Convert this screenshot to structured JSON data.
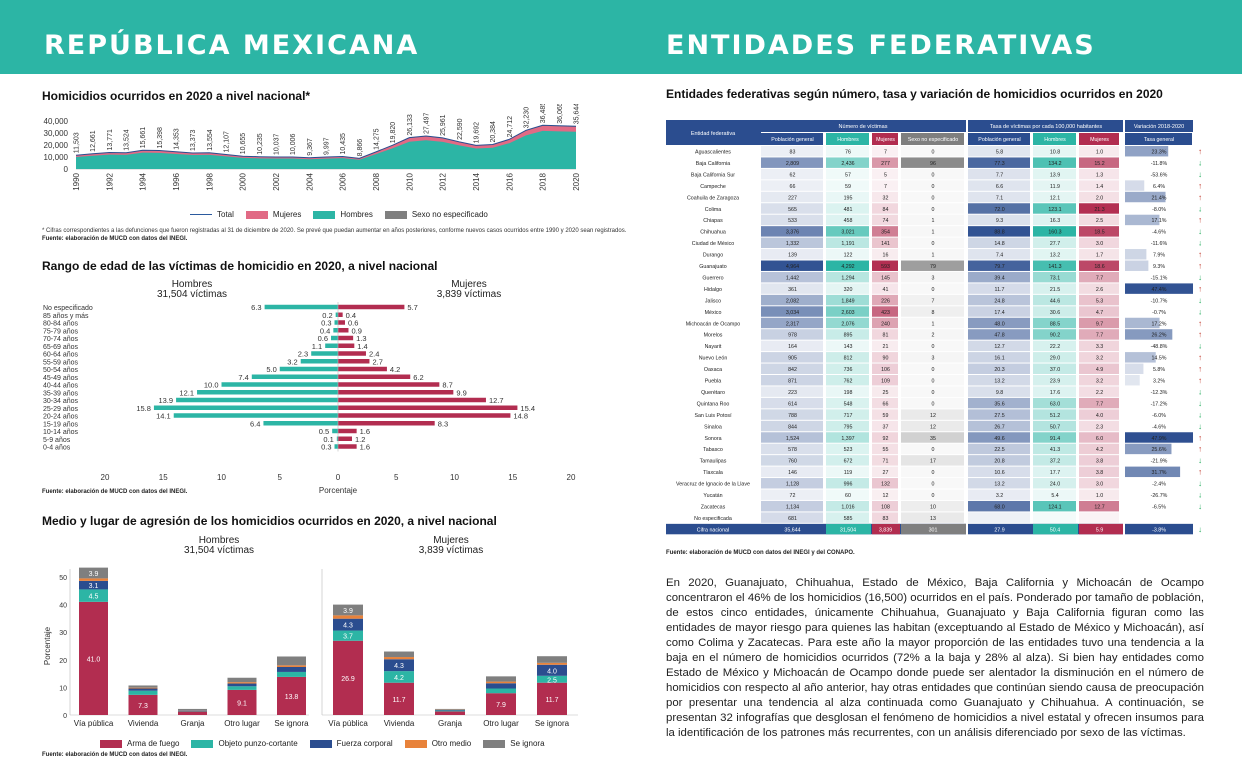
{
  "header": {
    "left": "REPÚBLICA MEXICANA",
    "right": "ENTIDADES FEDERATIVAS"
  },
  "colors": {
    "teal": "#2cb5a5",
    "crimson": "#b22d50",
    "pink": "#e16a85",
    "navy": "#2b4d8f",
    "orange": "#e8823a",
    "gray": "#7f7f7f",
    "headerblue": "#2b4d8f"
  },
  "sections": {
    "s1": "Homicidios ocurridos en 2020 a nivel nacional*",
    "s1_note": "* Cifras correspondientes a las defunciones que fueron registradas al 31 de diciembre de 2020. Se prevé que puedan aumentar en años posteriores, conforme nuevos casos ocurridos entre 1990 y 2020 sean registrados.",
    "s1_src": "Fuente: elaboración de MUCD con datos del INEGI.",
    "s2": "Rango de edad de las víctimas de homicidio en 2020, a nivel nacional",
    "s2_src": "Fuente: elaboración de MUCD con datos del INEGI.",
    "s3": "Medio y lugar de agresión de los homicidios ocurridos en 2020, a nivel nacional",
    "s3_src": "Fuente: elaboración de MUCD con datos del INEGI.",
    "s4": "Entidades federativas según número, tasa y variación de homicidios ocurridos en 2020",
    "s4_src": "Fuente: elaboración de MUCD con datos del INEGI y del CONAPO."
  },
  "paragraph": "En 2020, Guanajuato, Chihuahua, Estado de México, Baja California y Michoacán de Ocampo concentraron el 46% de los homicidios (16,500) ocurridos en el país. Ponderado por tamaño de población, de estos cinco entidades, únicamente Chihuahua, Guanajuato y Baja California figuran como las entidades de mayor riesgo para quienes las habitan (exceptuando al Estado de México y Michoacán), así como Colima y Zacatecas. Para este año la mayor proporción de las entidades tuvo una tendencia a la baja en el número de homicidios ocurridos (72% a la baja y 28% al alza). Si bien hay entidades como Estado de México y Michoacán de Ocampo donde pue­de ser alentador la disminución en el número de homicidios con respecto al año anterior, hay otras entidades que continúan siendo causa de preocupación por presentar una tendencia al alza continuada como Guanajuato y Chihuahua. A continuación, se presentan 32 infografías que desglosan el fenómeno de homicidios a nivel estatal y ofrecen insumos para la identificación de los patrones más recurrentes, con un análisis diferenciado por sexo de las víctimas.",
  "chart_data": [
    {
      "type": "area",
      "x": [
        1990,
        1991,
        1992,
        1993,
        1994,
        1995,
        1996,
        1997,
        1998,
        1999,
        2000,
        2001,
        2002,
        2003,
        2004,
        2005,
        2006,
        2007,
        2008,
        2009,
        2010,
        2011,
        2012,
        2013,
        2014,
        2015,
        2016,
        2017,
        2018,
        2019,
        2020
      ],
      "total": [
        11503,
        12661,
        13771,
        13524,
        15661,
        15398,
        14353,
        13373,
        13554,
        12107,
        10655,
        10235,
        10037,
        10006,
        9367,
        9997,
        10435,
        8866,
        14275,
        19820,
        26133,
        27497,
        25961,
        22590,
        19692,
        20384,
        24712,
        32230,
        36485,
        36065,
        35644
      ],
      "total_labels": [
        "11,503",
        "12,661",
        "13,771",
        "13,524",
        "15,661",
        "15,398",
        "14,353",
        "13,373",
        "13,554",
        "12,107",
        "10,655",
        "10,235",
        "10,037",
        "10,006",
        "9,367",
        "9,997",
        "10,435",
        "8,866",
        "14,275",
        "19,820",
        "26,133",
        "27,497",
        "25,961",
        "22,590",
        "19,692",
        "20,384",
        "24,712",
        "32,230",
        "36,485",
        "36,065",
        "35,644"
      ],
      "yticks": [
        "40,000",
        "30,000",
        "20,000",
        "10,000",
        "0"
      ],
      "ylim": [
        0,
        40000
      ],
      "xticks": [
        "1990",
        "1992",
        "1994",
        "1996",
        "1998",
        "2000",
        "2002",
        "2004",
        "2006",
        "2008",
        "2010",
        "2012",
        "2014",
        "2016",
        "2018",
        "2020"
      ],
      "legend": [
        "Total",
        "Mujeres",
        "Hombres",
        "Sexo no especificado"
      ]
    },
    {
      "type": "bar",
      "orientation": "horizontal",
      "left_title": "Hombres",
      "left_sub": "31,504 víctimas",
      "right_title": "Mujeres",
      "right_sub": "3,839 víctimas",
      "categories": [
        "No especificado",
        "85 años y más",
        "80-84 años",
        "75-79 años",
        "70-74 años",
        "65-69 años",
        "60-64 años",
        "55-59 años",
        "50-54 años",
        "45-49 años",
        "40-44 años",
        "35-39 años",
        "30-34 años",
        "25-29 años",
        "20-24 años",
        "15-19 años",
        "10-14 años",
        "5-9 años",
        "0-4 años"
      ],
      "hombres": [
        6.3,
        0.2,
        0.3,
        0.4,
        0.6,
        1.1,
        2.3,
        3.2,
        5.0,
        7.4,
        10.0,
        12.1,
        13.9,
        15.8,
        14.1,
        6.4,
        0.5,
        0.1,
        0.3
      ],
      "mujeres": [
        5.7,
        0.4,
        0.6,
        0.9,
        1.3,
        1.4,
        2.4,
        2.7,
        4.2,
        6.2,
        8.7,
        9.9,
        12.7,
        15.4,
        14.8,
        8.3,
        1.6,
        1.2,
        1.6
      ],
      "hombres_labels": [
        "6.3",
        "0.2",
        "0.3",
        "0.4",
        "0.6",
        "1.1",
        "2.3",
        "3.2",
        "5.0",
        "7.4",
        "10.0",
        "12.1",
        "13.9",
        "15.8",
        "14.1",
        "6.4",
        "0.5",
        "0.1",
        "0.3"
      ],
      "mujeres_labels": [
        "5.7",
        "0.4",
        "0.6",
        "0.9",
        "1.3",
        "1.4",
        "2.4",
        "2.7",
        "4.2",
        "6.2",
        "8.7",
        "9.9",
        "12.7",
        "15.4",
        "14.8",
        "8.3",
        "1.6",
        "1.2",
        "1.6"
      ],
      "xticks": [
        "20",
        "15",
        "10",
        "5",
        "0",
        "5",
        "10",
        "15",
        "20"
      ],
      "xlabel": "Porcentaje",
      "xlim": [
        0,
        20
      ]
    },
    {
      "type": "bar",
      "stacked": true,
      "left_title": "Hombres",
      "left_sub": "31,504 víctimas",
      "right_title": "Mujeres",
      "right_sub": "3,839 víctimas",
      "categories": [
        "Vía pública",
        "Vivienda",
        "Granja",
        "Otro lugar",
        "Se ignora"
      ],
      "series_names": [
        "Arma de fuego",
        "Objeto punzo-cortante",
        "Fuerza corporal",
        "Otro medio",
        "Se ignora"
      ],
      "hombres": [
        [
          41.0,
          4.5,
          3.1,
          0.9,
          3.9
        ],
        [
          7.3,
          1.5,
          0.8,
          0.3,
          0.8
        ],
        [
          1.3,
          0.2,
          0.2,
          0.1,
          0.4
        ],
        [
          9.1,
          1.3,
          1.0,
          0.5,
          1.6
        ],
        [
          13.8,
          1.8,
          1.8,
          0.6,
          3.2
        ]
      ],
      "mujeres": [
        [
          26.9,
          3.7,
          4.3,
          1.2,
          3.9
        ],
        [
          11.7,
          4.2,
          4.3,
          0.8,
          2.0
        ],
        [
          1.3,
          0.3,
          0.2,
          0.1,
          0.3
        ],
        [
          7.9,
          1.7,
          1.9,
          0.6,
          1.9
        ],
        [
          11.7,
          2.5,
          4.0,
          0.7,
          2.4
        ]
      ],
      "hombres_labels": [
        [
          "41.0",
          "4.5",
          "3.1",
          "",
          "3.9"
        ],
        [
          "7.3",
          "",
          "",
          "",
          ""
        ],
        [
          "",
          "",
          "",
          "",
          ""
        ],
        [
          "9.1",
          "",
          "",
          "",
          ""
        ],
        [
          "13.8",
          "",
          "",
          "",
          ""
        ]
      ],
      "mujeres_labels": [
        [
          "26.9",
          "3.7",
          "4.3",
          "",
          "3.9"
        ],
        [
          "11.7",
          "4.2",
          "4.3",
          "",
          ""
        ],
        [
          "",
          "",
          "",
          "",
          ""
        ],
        [
          "7.9",
          "",
          "",
          "",
          ""
        ],
        [
          "11.7",
          "2.5",
          "4.0",
          "",
          ""
        ]
      ],
      "yticks": [
        "50",
        "40",
        "30",
        "20",
        "10",
        "0"
      ],
      "ylim": [
        0,
        55
      ],
      "ylabel": "Porcentaje"
    },
    {
      "type": "table",
      "group_headers": [
        "Número de víctimas",
        "Tasa de víctimas por cada 100,000 habitantes",
        "Variación 2018-2020"
      ],
      "columns": [
        "Entidad federativa",
        "Población general",
        "Hombres",
        "Mujeres",
        "Sexo no especificado",
        "Población general",
        "Hombres",
        "Mujeres",
        "Tasa general"
      ],
      "rows": [
        [
          "Aguascalientes",
          "83",
          "76",
          "7",
          "0",
          "5.8",
          "10.8",
          "1.0",
          "23.3%",
          "up"
        ],
        [
          "Baja California",
          "2,809",
          "2,436",
          "277",
          "96",
          "77.3",
          "134.2",
          "15.2",
          "-11.8%",
          "down"
        ],
        [
          "Baja California Sur",
          "62",
          "57",
          "5",
          "0",
          "7.7",
          "13.9",
          "1.3",
          "-53.6%",
          "down"
        ],
        [
          "Campeche",
          "66",
          "59",
          "7",
          "0",
          "6.6",
          "11.9",
          "1.4",
          "6.4%",
          "up"
        ],
        [
          "Coahuila de Zaragoza",
          "227",
          "195",
          "32",
          "0",
          "7.1",
          "12.1",
          "2.0",
          "21.4%",
          "up"
        ],
        [
          "Colima",
          "565",
          "481",
          "84",
          "0",
          "72.0",
          "123.1",
          "21.3",
          "-8.0%",
          "down"
        ],
        [
          "Chiapas",
          "533",
          "458",
          "74",
          "1",
          "9.3",
          "16.3",
          "2.5",
          "17.1%",
          "up"
        ],
        [
          "Chihuahua",
          "3,376",
          "3,021",
          "354",
          "1",
          "88.8",
          "160.3",
          "18.5",
          "-4.6%",
          "down"
        ],
        [
          "Ciudad de México",
          "1,332",
          "1,191",
          "141",
          "0",
          "14.8",
          "27.7",
          "3.0",
          "-11.6%",
          "down"
        ],
        [
          "Durango",
          "139",
          "122",
          "16",
          "1",
          "7.4",
          "13.2",
          "1.7",
          "7.9%",
          "up"
        ],
        [
          "Guanajuato",
          "4,964",
          "4,292",
          "593",
          "79",
          "79.7",
          "141.3",
          "18.6",
          "9.3%",
          "up"
        ],
        [
          "Guerrero",
          "1,442",
          "1,294",
          "145",
          "3",
          "39.4",
          "73.1",
          "7.7",
          "-15.1%",
          "down"
        ],
        [
          "Hidalgo",
          "361",
          "320",
          "41",
          "0",
          "11.7",
          "21.5",
          "2.6",
          "47.4%",
          "up"
        ],
        [
          "Jalisco",
          "2,082",
          "1,849",
          "226",
          "7",
          "24.8",
          "44.6",
          "5.3",
          "-10.7%",
          "down"
        ],
        [
          "México",
          "3,034",
          "2,603",
          "423",
          "8",
          "17.4",
          "30.6",
          "4.7",
          "-0.7%",
          "down"
        ],
        [
          "Michoacán de Ocampo",
          "2,317",
          "2,076",
          "240",
          "1",
          "48.0",
          "88.5",
          "9.7",
          "17.2%",
          "up"
        ],
        [
          "Morelos",
          "978",
          "895",
          "81",
          "2",
          "47.8",
          "90.2",
          "7.7",
          "26.2%",
          "up"
        ],
        [
          "Nayarit",
          "164",
          "143",
          "21",
          "0",
          "12.7",
          "22.2",
          "3.3",
          "-48.8%",
          "down"
        ],
        [
          "Nuevo León",
          "905",
          "812",
          "90",
          "3",
          "16.1",
          "29.0",
          "3.2",
          "14.5%",
          "up"
        ],
        [
          "Oaxaca",
          "842",
          "736",
          "106",
          "0",
          "20.3",
          "37.0",
          "4.9",
          "5.8%",
          "up"
        ],
        [
          "Puebla",
          "871",
          "762",
          "109",
          "0",
          "13.2",
          "23.9",
          "3.2",
          "3.2%",
          "up"
        ],
        [
          "Querétaro",
          "223",
          "198",
          "25",
          "0",
          "9.8",
          "17.6",
          "2.2",
          "-12.3%",
          "down"
        ],
        [
          "Quintana Roo",
          "614",
          "548",
          "66",
          "0",
          "35.6",
          "63.0",
          "7.7",
          "-17.2%",
          "down"
        ],
        [
          "San Luis Potosí",
          "788",
          "717",
          "59",
          "12",
          "27.5",
          "51.2",
          "4.0",
          "-6.0%",
          "down"
        ],
        [
          "Sinaloa",
          "844",
          "795",
          "37",
          "12",
          "26.7",
          "50.7",
          "2.3",
          "-4.6%",
          "down"
        ],
        [
          "Sonora",
          "1,524",
          "1,397",
          "92",
          "35",
          "49.6",
          "91.4",
          "6.0",
          "47.9%",
          "up"
        ],
        [
          "Tabasco",
          "578",
          "523",
          "55",
          "0",
          "22.5",
          "41.3",
          "4.2",
          "25.6%",
          "up"
        ],
        [
          "Tamaulipas",
          "760",
          "672",
          "71",
          "17",
          "20.8",
          "37.2",
          "3.8",
          "-21.9%",
          "down"
        ],
        [
          "Tlaxcala",
          "146",
          "119",
          "27",
          "0",
          "10.6",
          "17.7",
          "3.8",
          "31.7%",
          "up"
        ],
        [
          "Veracruz de Ignacio de la Llave",
          "1,128",
          "996",
          "132",
          "0",
          "13.2",
          "24.0",
          "3.0",
          "-2.4%",
          "down"
        ],
        [
          "Yucatán",
          "72",
          "60",
          "12",
          "0",
          "3.2",
          "5.4",
          "1.0",
          "-26.7%",
          "down"
        ],
        [
          "Zacatecas",
          "1,134",
          "1,016",
          "108",
          "10",
          "68.0",
          "124.1",
          "12.7",
          "-6.5%",
          "down"
        ],
        [
          "No especificada",
          "681",
          "585",
          "83",
          "13",
          "",
          "",
          "",
          "",
          ""
        ]
      ],
      "total": [
        "Cifra nacional",
        "35,644",
        "31,504",
        "3,839",
        "301",
        "27.9",
        "50.4",
        "5.9",
        "-3.8%",
        "down"
      ]
    }
  ]
}
